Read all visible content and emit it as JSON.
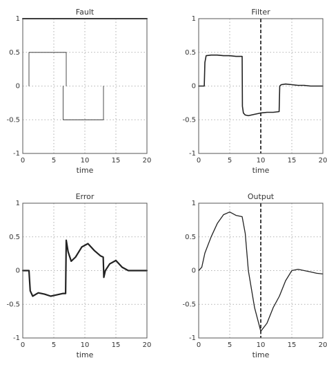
{
  "chart_data": [
    {
      "type": "line",
      "title": "Fault",
      "xlabel": "time",
      "ylabel": "",
      "xlim": [
        0,
        20
      ],
      "ylim": [
        -1,
        1
      ],
      "xticks": [
        0,
        5,
        10,
        15,
        20
      ],
      "yticks": [
        -1,
        -0.5,
        0,
        0.5,
        1
      ],
      "ytick_labels": [
        "-1",
        "-0.5",
        "0",
        "0.5",
        "1"
      ],
      "grid": true,
      "series": [
        {
          "x": [
            0,
            20
          ],
          "y": [
            1,
            1
          ],
          "width": 2
        },
        {
          "x": [
            1,
            1,
            7,
            7
          ],
          "y": [
            0,
            0.5,
            0.5,
            0
          ],
          "width": 0.8
        },
        {
          "x": [
            6.5,
            6.5,
            13,
            13
          ],
          "y": [
            0,
            -0.5,
            -0.5,
            0
          ],
          "width": 0.8
        }
      ]
    },
    {
      "type": "line",
      "title": "Filter",
      "xlabel": "time",
      "ylabel": "",
      "xlim": [
        0,
        20
      ],
      "ylim": [
        -1,
        1
      ],
      "xticks": [
        0,
        5,
        10,
        15,
        20
      ],
      "yticks": [
        -1,
        -0.5,
        0,
        0.5,
        1
      ],
      "ytick_labels": [
        "-1",
        "-0.5",
        "0",
        "0.5",
        "1"
      ],
      "grid": true,
      "ref_x": 10,
      "series": [
        {
          "x": [
            0,
            0.9,
            1.0,
            1.2,
            2,
            3,
            4,
            5,
            6,
            7,
            7.05,
            7.2,
            7.5,
            8,
            9,
            10,
            11,
            12,
            12.95,
            13.05,
            13.3,
            14,
            15,
            16,
            17,
            18,
            19,
            20
          ],
          "y": [
            0,
            0,
            0.35,
            0.45,
            0.46,
            0.46,
            0.45,
            0.45,
            0.44,
            0.44,
            -0.3,
            -0.4,
            -0.43,
            -0.44,
            -0.42,
            -0.4,
            -0.39,
            -0.39,
            -0.38,
            0.0,
            0.02,
            0.03,
            0.02,
            0.01,
            0.01,
            0.0,
            0.0,
            0.0
          ],
          "width": 1.6
        }
      ]
    },
    {
      "type": "line",
      "title": "Error",
      "xlabel": "time",
      "ylabel": "",
      "xlim": [
        0,
        20
      ],
      "ylim": [
        -1,
        1
      ],
      "xticks": [
        0,
        5,
        10,
        15,
        20
      ],
      "yticks": [
        -1,
        -0.5,
        0,
        0.5,
        1
      ],
      "ytick_labels": [
        "-1",
        "-0.5",
        "0",
        "0.5",
        "1"
      ],
      "grid": true,
      "series": [
        {
          "x": [
            0,
            1,
            1.2,
            1.6,
            2.5,
            3.5,
            4.5,
            5.5,
            6.5,
            6.9,
            7.0,
            7.3,
            7.8,
            8.5,
            9.5,
            10.5,
            11.5,
            12.5,
            12.95,
            13.05,
            13.3,
            14,
            15,
            16,
            17,
            18,
            19,
            20
          ],
          "y": [
            0,
            0,
            -0.3,
            -0.38,
            -0.33,
            -0.35,
            -0.38,
            -0.36,
            -0.34,
            -0.34,
            0.45,
            0.28,
            0.14,
            0.2,
            0.35,
            0.4,
            0.3,
            0.22,
            0.2,
            -0.1,
            0.0,
            0.1,
            0.15,
            0.05,
            0.0,
            0.0,
            0.0,
            0.0
          ],
          "width": 2.2
        }
      ]
    },
    {
      "type": "line",
      "title": "Output",
      "xlabel": "time",
      "ylabel": "",
      "xlim": [
        0,
        20
      ],
      "ylim": [
        -1,
        1
      ],
      "xticks": [
        0,
        5,
        10,
        15,
        20
      ],
      "yticks": [
        -1,
        -0.5,
        0,
        0.5,
        1
      ],
      "ytick_labels": [
        "-1",
        "-0.5",
        "0",
        "0.5",
        "1"
      ],
      "grid": true,
      "ref_x": 10,
      "series": [
        {
          "x": [
            0,
            0.5,
            1,
            2,
            3,
            4,
            5,
            6,
            7,
            7.5,
            8,
            9,
            10,
            11,
            12,
            13,
            14,
            15,
            16,
            17,
            18,
            19,
            20
          ],
          "y": [
            0,
            0.05,
            0.26,
            0.5,
            0.7,
            0.83,
            0.87,
            0.82,
            0.8,
            0.55,
            0.0,
            -0.55,
            -0.9,
            -0.78,
            -0.55,
            -0.38,
            -0.15,
            0.0,
            0.02,
            0.0,
            -0.02,
            -0.04,
            -0.05
          ],
          "width": 1.3
        }
      ]
    }
  ]
}
